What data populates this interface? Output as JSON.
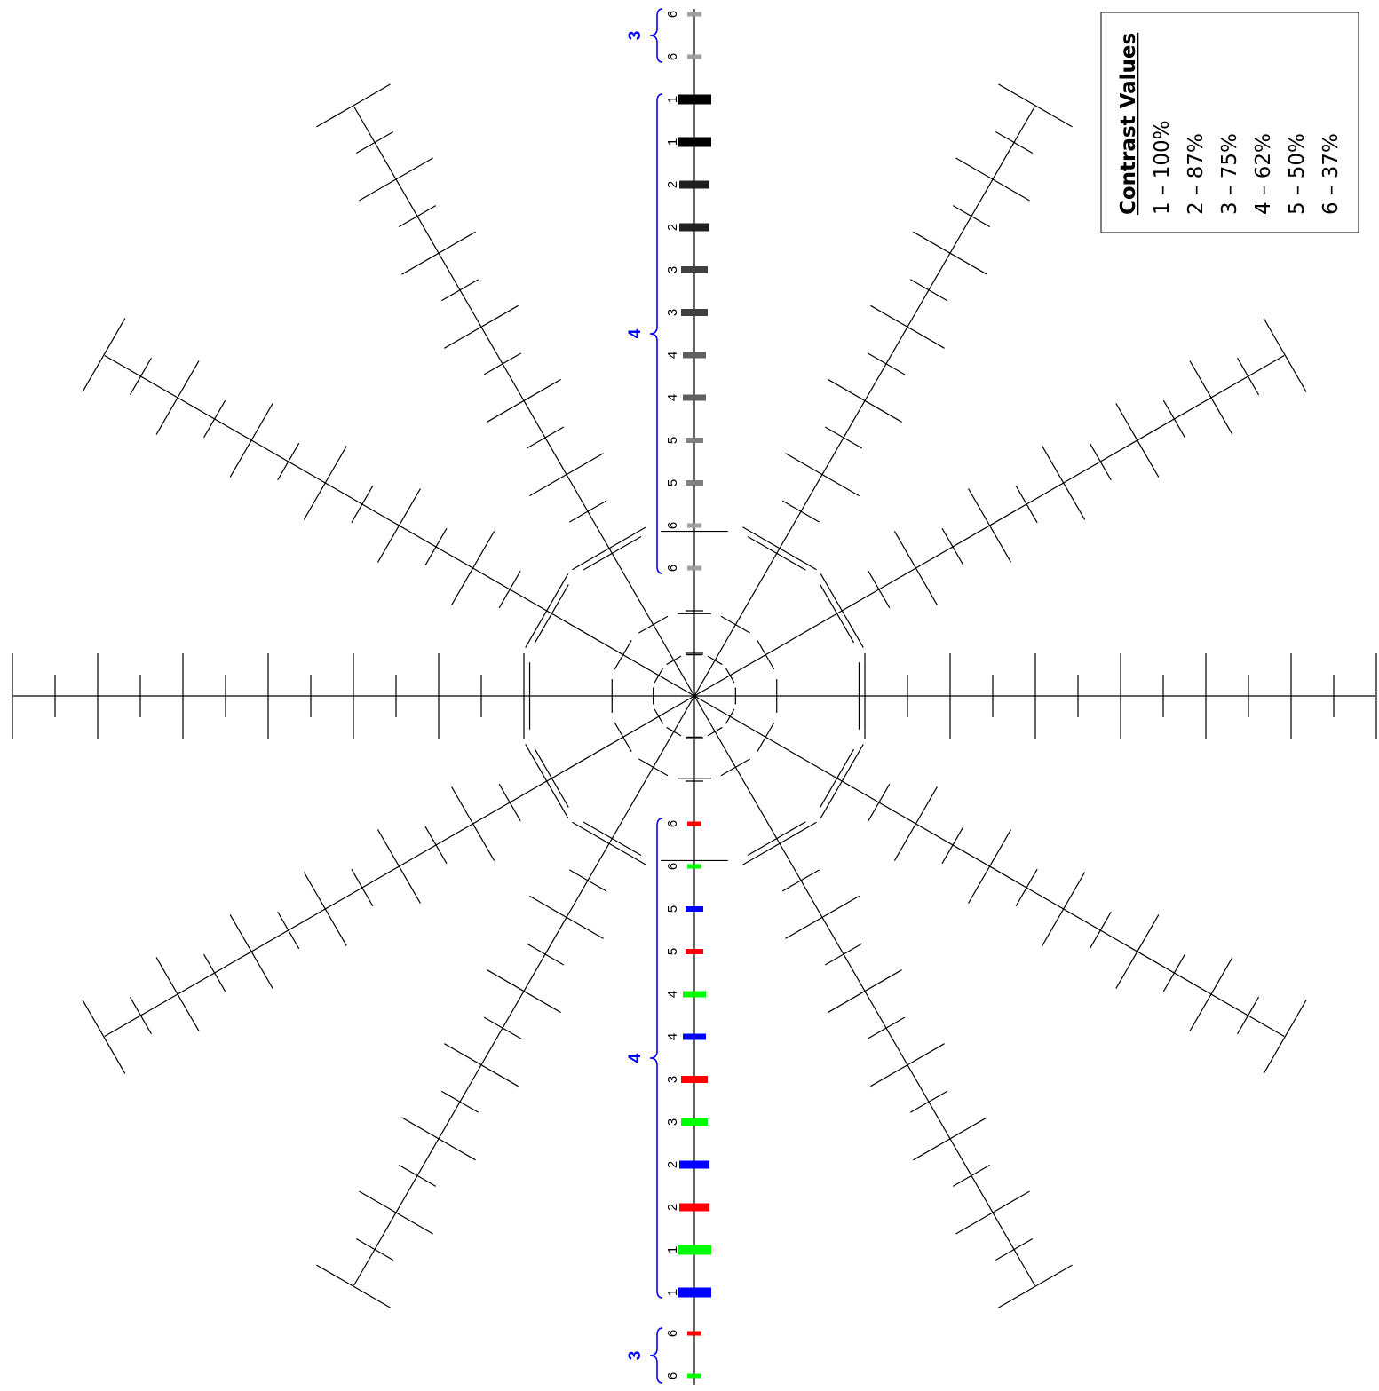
{
  "legend": {
    "title": "Contrast Values",
    "entries": [
      "1 – 100%",
      "2 – 87%",
      "3 – 75%",
      "4 – 62%",
      "5 – 50%",
      "6 – 37%"
    ]
  },
  "colors": {
    "line": "#000000",
    "brace": "#0000ff",
    "contrast_gray": {
      "1": "#000000",
      "2": "#202020",
      "3": "#404040",
      "4": "#606060",
      "5": "#808080",
      "6": "#a0a0a0"
    },
    "red": "#ff0000",
    "green": "#00ff00",
    "blue": "#0000ff"
  },
  "target": {
    "spokes": 12,
    "dashed_rings": 3
  },
  "upper_bars": {
    "top_group": {
      "brace_label": "3",
      "bars": [
        {
          "label": "6",
          "color": "gray"
        },
        {
          "label": "6",
          "color": "gray"
        }
      ]
    },
    "main_group": {
      "brace_label": "4",
      "bars": [
        {
          "label": "1",
          "color": "gray"
        },
        {
          "label": "1",
          "color": "gray"
        },
        {
          "label": "2",
          "color": "gray"
        },
        {
          "label": "2",
          "color": "gray"
        },
        {
          "label": "3",
          "color": "gray"
        },
        {
          "label": "3",
          "color": "gray"
        },
        {
          "label": "4",
          "color": "gray"
        },
        {
          "label": "4",
          "color": "gray"
        },
        {
          "label": "5",
          "color": "gray"
        },
        {
          "label": "5",
          "color": "gray"
        },
        {
          "label": "6",
          "color": "gray"
        },
        {
          "label": "6",
          "color": "gray"
        }
      ]
    }
  },
  "lower_bars": {
    "main_group": {
      "brace_label": "4",
      "bars": [
        {
          "label": "6",
          "color": "red"
        },
        {
          "label": "6",
          "color": "green"
        },
        {
          "label": "5",
          "color": "blue"
        },
        {
          "label": "5",
          "color": "red"
        },
        {
          "label": "4",
          "color": "green"
        },
        {
          "label": "4",
          "color": "blue"
        },
        {
          "label": "3",
          "color": "red"
        },
        {
          "label": "3",
          "color": "green"
        },
        {
          "label": "2",
          "color": "blue"
        },
        {
          "label": "2",
          "color": "red"
        },
        {
          "label": "1",
          "color": "green"
        },
        {
          "label": "1",
          "color": "blue"
        }
      ]
    },
    "bottom_group": {
      "brace_label": "3",
      "bars": [
        {
          "label": "6",
          "color": "red"
        },
        {
          "label": "6",
          "color": "green"
        }
      ]
    }
  }
}
